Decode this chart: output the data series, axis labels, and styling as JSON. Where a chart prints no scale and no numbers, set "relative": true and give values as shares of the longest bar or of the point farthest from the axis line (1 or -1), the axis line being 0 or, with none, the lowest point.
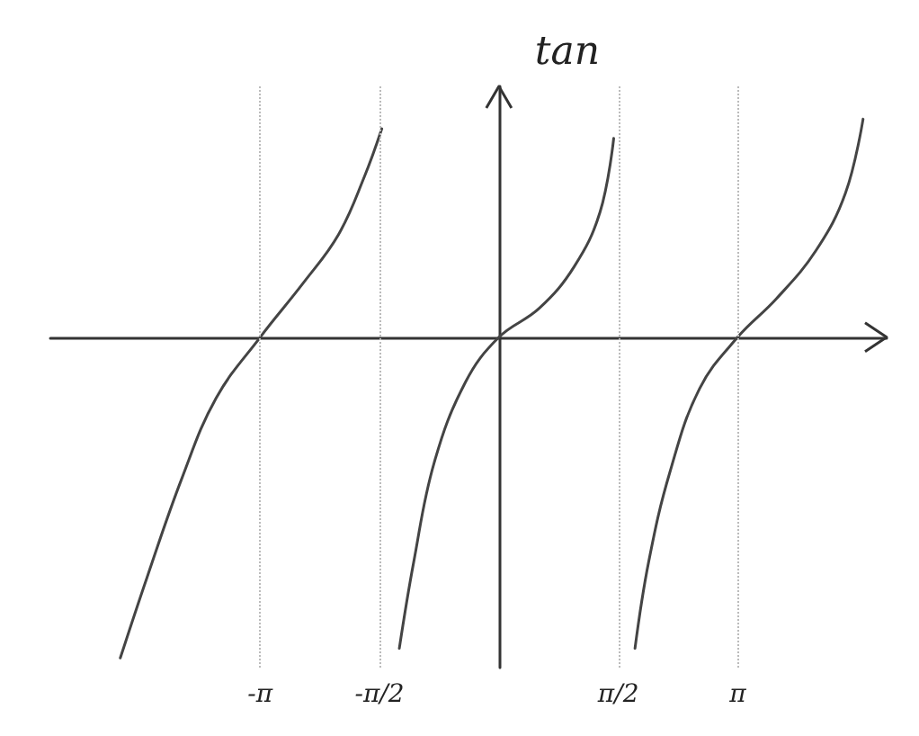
{
  "chart_data": {
    "type": "line",
    "ylabel": "tan",
    "relative": true,
    "xlim": [
      -5.9,
      5.1
    ],
    "xticks": [
      {
        "value": -3.1416,
        "label": "-π"
      },
      {
        "value": -1.5708,
        "label": "-π/2"
      },
      {
        "value": 1.5708,
        "label": "π/2"
      },
      {
        "value": 3.1416,
        "label": "π"
      }
    ],
    "tick_labels": "x",
    "grid": false,
    "marker": "none",
    "line_style": "solid",
    "series": [
      {
        "color": "#444444",
        "x": [
          -4.98,
          -4.63,
          -4.17,
          -3.72,
          -3.14,
          -2.57,
          -2.11,
          -1.77,
          -1.54
        ],
        "values": [
          -1,
          -0.75,
          -0.44,
          -0.19,
          0,
          0.17,
          0.32,
          0.5,
          0.65
        ]
      },
      {
        "color": "#444444",
        "x": [
          -1.31,
          -1.12,
          -0.85,
          -0.44,
          0,
          0.53,
          0.99,
          1.33,
          1.51
        ],
        "values": [
          -0.97,
          -0.7,
          -0.39,
          -0.14,
          0,
          0.09,
          0.22,
          0.39,
          0.62
        ]
      },
      {
        "color": "#444444",
        "x": [
          1.79,
          1.97,
          2.25,
          2.64,
          3.14,
          3.65,
          4.17,
          4.56,
          4.79
        ],
        "values": [
          -0.97,
          -0.7,
          -0.42,
          -0.16,
          0,
          0.12,
          0.27,
          0.45,
          0.68
        ]
      }
    ],
    "ref_lines": [
      {
        "axis": "x",
        "value": -3.1416,
        "color": "#bbbbbb",
        "line_style": "dotted"
      },
      {
        "axis": "x",
        "value": -1.5708,
        "color": "#bbbbbb",
        "line_style": "dotted"
      },
      {
        "axis": "x",
        "value": 1.5708,
        "color": "#bbbbbb",
        "line_style": "dotted"
      },
      {
        "axis": "x",
        "value": 3.1416,
        "color": "#bbbbbb",
        "line_style": "dotted"
      }
    ]
  }
}
